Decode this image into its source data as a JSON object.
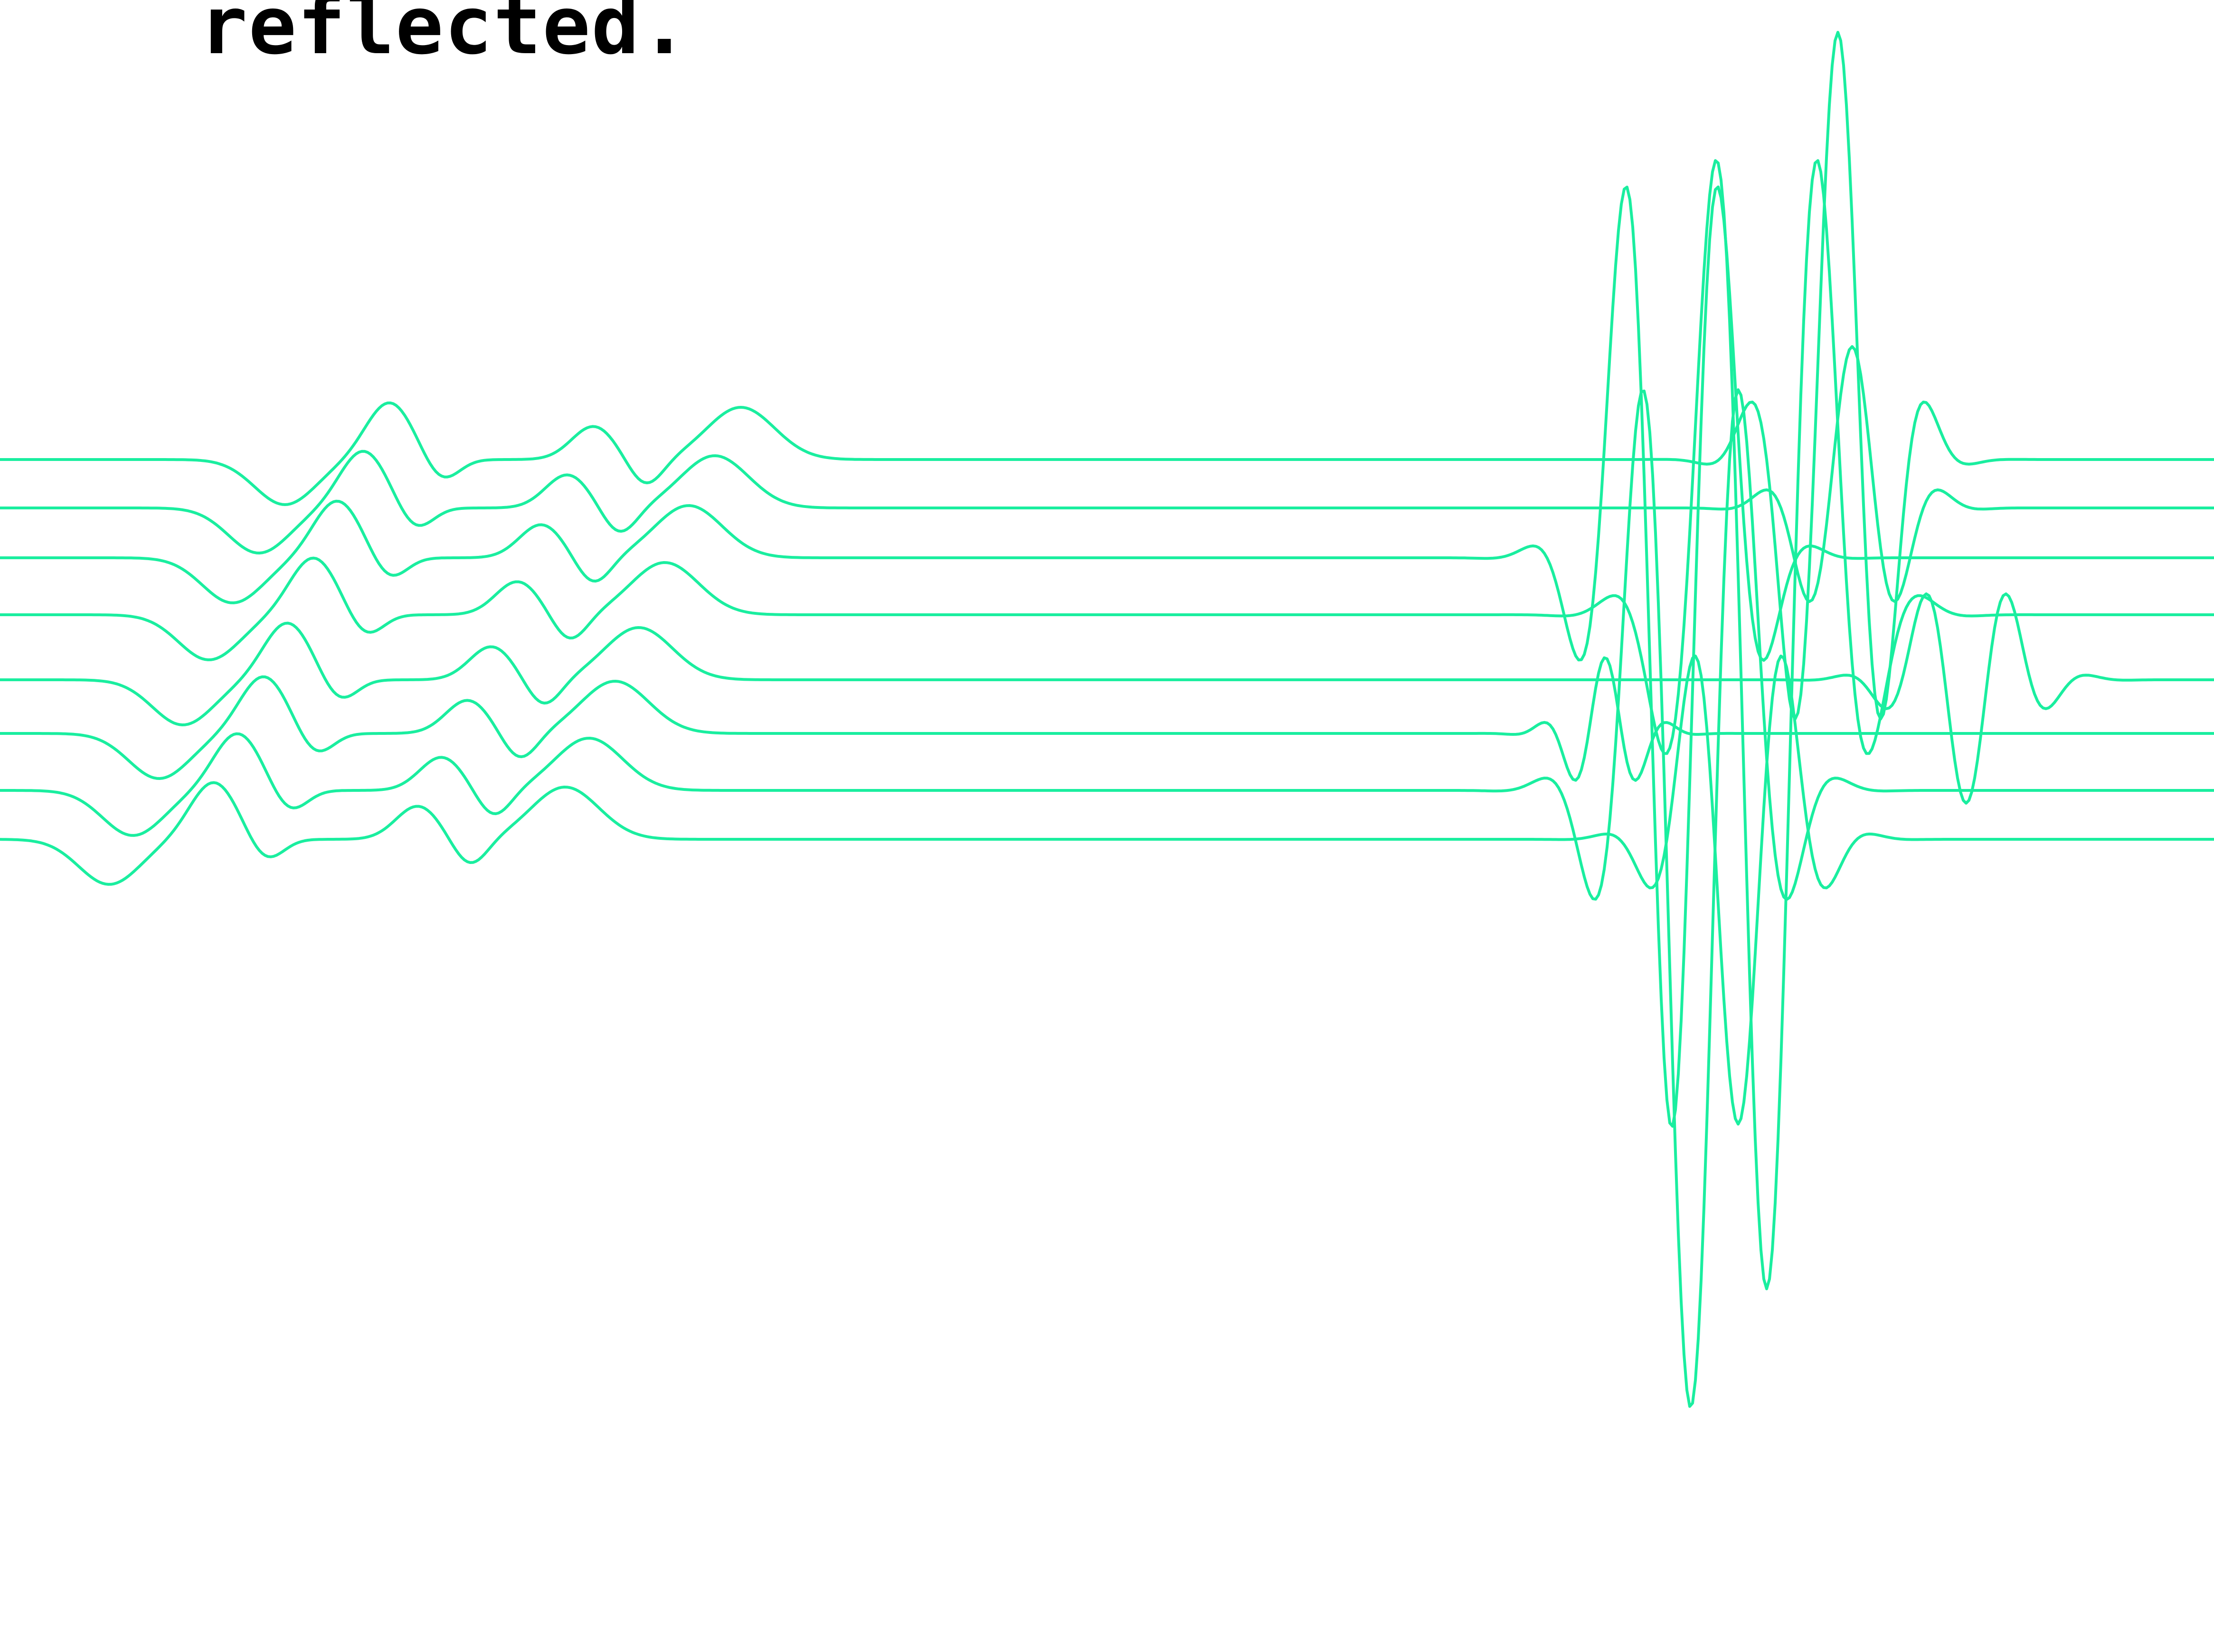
{
  "caption": "reflected.",
  "trace_color": "#1aee9f",
  "background_color": "#ffffff"
}
